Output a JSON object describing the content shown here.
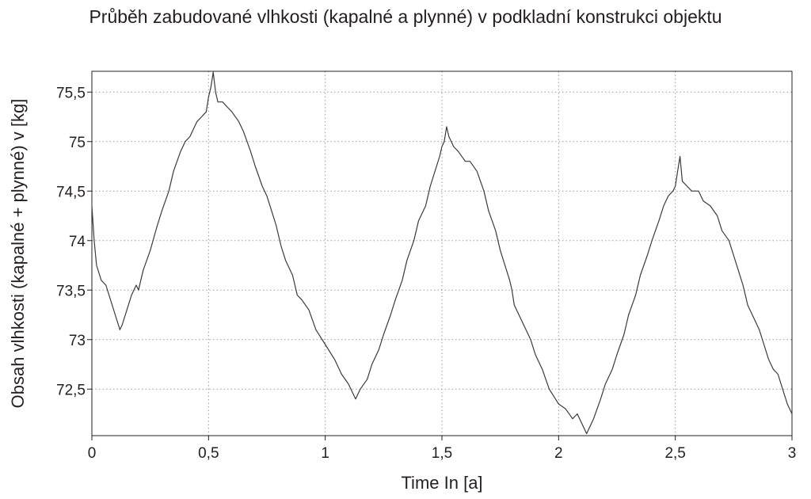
{
  "chart_data": {
    "type": "line",
    "title": "Průběh zabudované vlhkosti (kapalné a plynné) v podkladní konstrukci objektu",
    "xlabel": "Time In [a]",
    "ylabel": "Obsah vlhkosti (kapalné + plynné) v [kg]",
    "xlim": [
      0,
      3
    ],
    "ylim": [
      72.03,
      75.71
    ],
    "grid": true,
    "x_ticks": [
      0,
      0.5,
      1,
      1.5,
      2,
      2.5,
      3
    ],
    "x_tick_labels": [
      "0",
      "0,5",
      "1",
      "1,5",
      "2",
      "2,5",
      "3"
    ],
    "y_ticks": [
      72.5,
      73,
      73.5,
      74,
      74.5,
      75,
      75.5
    ],
    "y_tick_labels": [
      "72,5",
      "73",
      "73,5",
      "74",
      "74,5",
      "75",
      "75,5"
    ],
    "series": [
      {
        "x": [
          0,
          0.01,
          0.02,
          0.04,
          0.06,
          0.08,
          0.1,
          0.12,
          0.13,
          0.15,
          0.17,
          0.19,
          0.2,
          0.22,
          0.25,
          0.28,
          0.3,
          0.33,
          0.35,
          0.38,
          0.4,
          0.42,
          0.45,
          0.47,
          0.49,
          0.5,
          0.51,
          0.52,
          0.53,
          0.54,
          0.56,
          0.58,
          0.6,
          0.63,
          0.65,
          0.68,
          0.7,
          0.73,
          0.75,
          0.77,
          0.79,
          0.8,
          0.81,
          0.83,
          0.86,
          0.88,
          0.9,
          0.93,
          0.96,
          1.0,
          1.04,
          1.07,
          1.1,
          1.12,
          1.13,
          1.15,
          1.18,
          1.2,
          1.23,
          1.25,
          1.28,
          1.3,
          1.33,
          1.35,
          1.38,
          1.4,
          1.43,
          1.45,
          1.47,
          1.49,
          1.5,
          1.51,
          1.52,
          1.53,
          1.55,
          1.57,
          1.6,
          1.62,
          1.65,
          1.68,
          1.7,
          1.73,
          1.75,
          1.77,
          1.79,
          1.8,
          1.81,
          1.83,
          1.86,
          1.88,
          1.9,
          1.93,
          1.96,
          2.0,
          2.03,
          2.06,
          2.08,
          2.1,
          2.12,
          2.13,
          2.15,
          2.18,
          2.2,
          2.23,
          2.25,
          2.28,
          2.3,
          2.33,
          2.35,
          2.38,
          2.4,
          2.43,
          2.45,
          2.47,
          2.49,
          2.5,
          2.51,
          2.52,
          2.53,
          2.55,
          2.57,
          2.6,
          2.62,
          2.65,
          2.68,
          2.7,
          2.73,
          2.75,
          2.77,
          2.79,
          2.8,
          2.81,
          2.83,
          2.86,
          2.88,
          2.9,
          2.92,
          2.94,
          2.96,
          2.98,
          3.0
        ],
        "values": [
          74.35,
          74.0,
          73.75,
          73.6,
          73.55,
          73.4,
          73.25,
          73.1,
          73.15,
          73.3,
          73.45,
          73.55,
          73.5,
          73.7,
          73.9,
          74.15,
          74.3,
          74.5,
          74.7,
          74.9,
          75.0,
          75.05,
          75.2,
          75.25,
          75.3,
          75.45,
          75.55,
          75.7,
          75.5,
          75.4,
          75.4,
          75.35,
          75.3,
          75.2,
          75.1,
          74.9,
          74.75,
          74.55,
          74.45,
          74.3,
          74.15,
          74.05,
          73.95,
          73.8,
          73.65,
          73.45,
          73.4,
          73.3,
          73.1,
          72.95,
          72.8,
          72.65,
          72.55,
          72.45,
          72.4,
          72.5,
          72.6,
          72.75,
          72.9,
          73.05,
          73.25,
          73.4,
          73.6,
          73.8,
          74.0,
          74.2,
          74.35,
          74.55,
          74.7,
          74.85,
          74.95,
          75.0,
          75.15,
          75.05,
          74.95,
          74.9,
          74.8,
          74.8,
          74.7,
          74.5,
          74.3,
          74.1,
          73.9,
          73.75,
          73.6,
          73.5,
          73.35,
          73.25,
          73.1,
          73.0,
          72.85,
          72.7,
          72.5,
          72.35,
          72.3,
          72.2,
          72.25,
          72.15,
          72.05,
          72.1,
          72.2,
          72.4,
          72.55,
          72.7,
          72.85,
          73.05,
          73.25,
          73.45,
          73.65,
          73.85,
          74.0,
          74.2,
          74.35,
          74.45,
          74.5,
          74.55,
          74.7,
          74.85,
          74.6,
          74.55,
          74.5,
          74.5,
          74.4,
          74.35,
          74.25,
          74.1,
          74.0,
          73.85,
          73.7,
          73.55,
          73.45,
          73.35,
          73.25,
          73.1,
          72.95,
          72.8,
          72.7,
          72.65,
          72.5,
          72.35,
          72.25
        ]
      }
    ]
  }
}
